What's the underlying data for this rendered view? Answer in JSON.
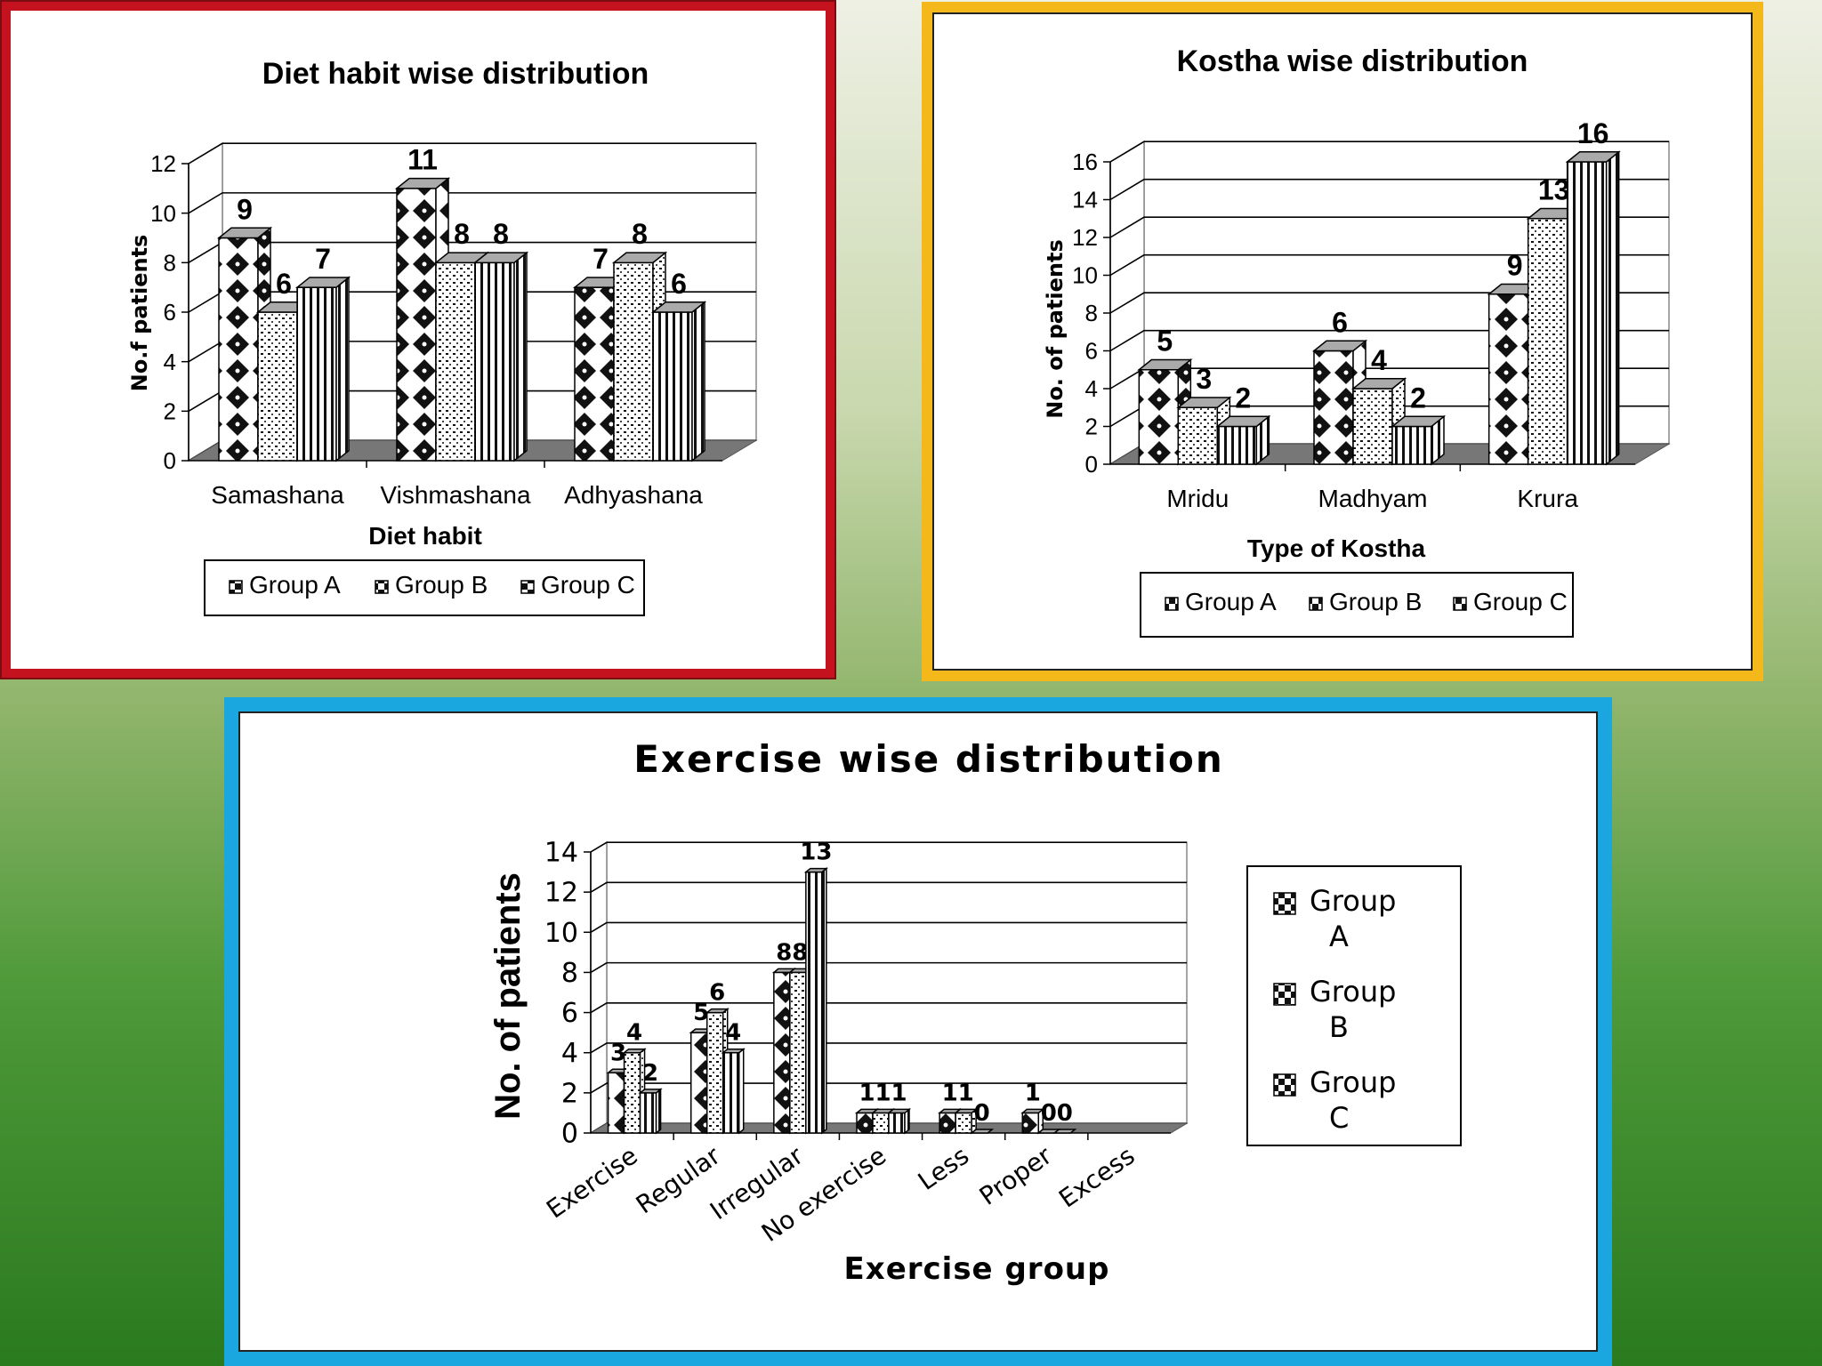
{
  "chart_data": [
    {
      "id": "diet",
      "type": "bar",
      "title": "Diet habit wise distribution",
      "xlabel": "Diet habit",
      "ylabel": "No.f patients",
      "categories": [
        "Samashana",
        "Vishmashana",
        "Adhyashana"
      ],
      "series": [
        {
          "name": "Group A",
          "values": [
            9,
            11,
            7
          ]
        },
        {
          "name": "Group B",
          "values": [
            6,
            8,
            8
          ]
        },
        {
          "name": "Group C",
          "values": [
            7,
            8,
            6
          ]
        }
      ],
      "ylim": [
        0,
        12
      ],
      "yticks": [
        0,
        2,
        4,
        6,
        8,
        10,
        12
      ],
      "grid": true,
      "legend": "bottom"
    },
    {
      "id": "kostha",
      "type": "bar",
      "title": "Kostha wise distribution",
      "xlabel": "Type of Kostha",
      "ylabel": "No. of patients",
      "categories": [
        "Mridu",
        "Madhyam",
        "Krura"
      ],
      "series": [
        {
          "name": "Group A",
          "values": [
            5,
            6,
            9
          ]
        },
        {
          "name": "Group B",
          "values": [
            3,
            4,
            13
          ]
        },
        {
          "name": "Group C",
          "values": [
            2,
            2,
            16
          ]
        }
      ],
      "ylim": [
        0,
        16
      ],
      "yticks": [
        0,
        2,
        4,
        6,
        8,
        10,
        12,
        14,
        16
      ],
      "grid": true,
      "legend": "bottom"
    },
    {
      "id": "exercise",
      "type": "bar",
      "title": "Exercise wise distribution",
      "xlabel": "Exercise group",
      "ylabel": "No. of patients",
      "categories": [
        "Exercise",
        "Regular",
        "Irregular",
        "No exercise",
        "Less",
        "Proper",
        "Excess"
      ],
      "series": [
        {
          "name": "Group A",
          "values": [
            3,
            5,
            8,
            1,
            1,
            1,
            null
          ]
        },
        {
          "name": "Group B",
          "values": [
            4,
            6,
            8,
            1,
            1,
            0,
            null
          ]
        },
        {
          "name": "Group C",
          "values": [
            2,
            4,
            13,
            1,
            0,
            0,
            null
          ]
        }
      ],
      "ylim": [
        0,
        14
      ],
      "yticks": [
        0,
        2,
        4,
        6,
        8,
        10,
        12,
        14
      ],
      "grid": true,
      "legend": "right"
    }
  ],
  "patterns": {
    "Group A": "diamond",
    "Group B": "dotted",
    "Group C": "stripes"
  }
}
